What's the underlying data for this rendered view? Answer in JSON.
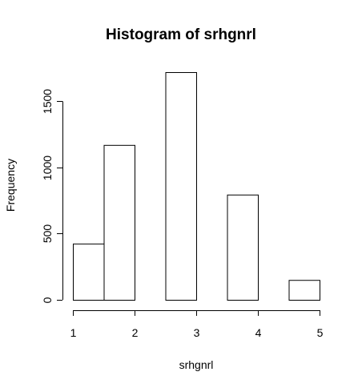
{
  "chart_data": {
    "type": "bar",
    "title": "Histogram of srhgnrl",
    "xlabel": "srhgnrl",
    "ylabel": "Frequency",
    "bins": [
      {
        "start": 1.0,
        "end": 1.5,
        "count": 425
      },
      {
        "start": 1.5,
        "end": 2.0,
        "count": 1170
      },
      {
        "start": 2.0,
        "end": 2.5,
        "count": 0
      },
      {
        "start": 2.5,
        "end": 3.0,
        "count": 1720
      },
      {
        "start": 3.0,
        "end": 3.5,
        "count": 0
      },
      {
        "start": 3.5,
        "end": 4.0,
        "count": 795
      },
      {
        "start": 4.0,
        "end": 4.5,
        "count": 0
      },
      {
        "start": 4.5,
        "end": 5.0,
        "count": 150
      }
    ],
    "xlim": [
      1,
      5
    ],
    "ylim": [
      0,
      1720
    ],
    "xticks": [
      "1",
      "2",
      "3",
      "4",
      "5"
    ],
    "yticks": [
      "0",
      "500",
      "1000",
      "1500"
    ],
    "grid": false
  }
}
